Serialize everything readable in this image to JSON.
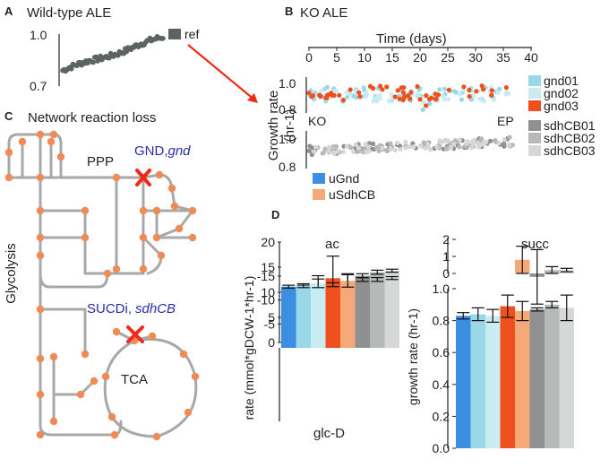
{
  "colors": {
    "gnd01": "#9ad8e8",
    "gnd02": "#c9ecf2",
    "gnd03": "#f0501e",
    "sdhCB01": "#8f9190",
    "sdhCB02": "#b7b9b8",
    "sdhCB03": "#d6d8d7",
    "uGnd": "#3b8ee0",
    "uSdhCB": "#f5a878",
    "ref": "#5d6361",
    "network": "#a8a8a8",
    "node": "#f08a56",
    "cross": "#ee2a1a"
  },
  "panel_a": {
    "letter": "A",
    "title": "Wild-type ALE",
    "legend_label": "ref",
    "chart_data": {
      "type": "scatter",
      "title": "Wild-type ALE",
      "ylim": [
        0.7,
        1.0
      ],
      "yticks": [
        "1.0",
        "0.7"
      ],
      "series": [
        {
          "name": "ref",
          "trend": [
            0.79,
            0.98
          ],
          "n_points": 70
        }
      ]
    }
  },
  "panel_b": {
    "letter": "B",
    "title": "KO ALE",
    "xlabel": "Time (days)",
    "xticks": [
      "0",
      "5",
      "10",
      "15",
      "20",
      "25",
      "30",
      "35",
      "40"
    ],
    "ylabel_line1": "Growth rate",
    "ylabel_line2": "(hr-1)",
    "upper_yticks": [
      "1.0",
      "0.8"
    ],
    "lower_yticks": [
      "1.0",
      "0.8"
    ],
    "label_ko": "KO",
    "label_ep": "EP",
    "legend_gnd": [
      "gnd01",
      "gnd02",
      "gnd03"
    ],
    "legend_sdh": [
      "sdhCB01",
      "sdhCB02",
      "sdhCB03"
    ],
    "legend_u": [
      "uGnd",
      "uSdhCB"
    ],
    "chart_data": [
      {
        "type": "scatter",
        "name": "gnd lineages",
        "xlim": [
          0,
          40
        ],
        "ylim": [
          0.8,
          1.05
        ],
        "series": [
          {
            "name": "gnd01",
            "x_range": [
              0,
              37
            ],
            "y_mean": 0.93
          },
          {
            "name": "gnd02",
            "x_range": [
              0,
              37
            ],
            "y_mean": 0.93
          },
          {
            "name": "gnd03",
            "x_range": [
              0,
              37
            ],
            "y_mean": 0.94
          }
        ]
      },
      {
        "type": "scatter",
        "name": "sdhCB lineages",
        "xlim": [
          0,
          40
        ],
        "ylim": [
          0.8,
          1.05
        ],
        "series": [
          {
            "name": "sdhCB01",
            "x_range": [
              0,
              37
            ],
            "y_mean": 0.95
          },
          {
            "name": "sdhCB02",
            "x_range": [
              0,
              37
            ],
            "y_mean": 0.95
          },
          {
            "name": "sdhCB03",
            "x_range": [
              0,
              37
            ],
            "y_mean": 0.95
          }
        ]
      }
    ]
  },
  "panel_c": {
    "letter": "C",
    "title": "Network reaction loss",
    "ppp": "PPP",
    "gnd_label_a": "GND,",
    "gnd_label_b": "gnd",
    "sucdi_label_a": "SUCDi,",
    "sucdi_label_b": "sdhCB",
    "glycolysis": "Glycolysis",
    "tca": "TCA"
  },
  "panel_d": {
    "letter": "D",
    "left_ylabel": "rate (mmol*gDCW-1*hr-1)",
    "right_ylabel": "growth rate (hr-1)",
    "chart_data": [
      {
        "type": "bar",
        "title": "ac",
        "categories": [
          "uGnd",
          "gnd01",
          "gnd02",
          "gnd03",
          "uSdhCB",
          "sdhCB01",
          "sdhCB02",
          "sdhCB03"
        ],
        "values": [
          10.6,
          10.8,
          11.6,
          12.8,
          11.9,
          13.3,
          14.0,
          14.3
        ],
        "errors": [
          0.3,
          0.6,
          1.7,
          4.4,
          1.8,
          0.4,
          0.4,
          0.3
        ],
        "ylim": [
          0,
          20
        ],
        "yticks": [
          "20",
          "15",
          "10",
          "5",
          "0"
        ]
      },
      {
        "type": "bar",
        "title": "glc-D",
        "categories": [
          "uGnd",
          "gnd01",
          "gnd02",
          "gnd03",
          "uSdhCB",
          "sdhCB01",
          "sdhCB02",
          "sdhCB03"
        ],
        "values": [
          -12.8,
          -13.0,
          -13.5,
          -13.2,
          -14.0,
          -14.3,
          -14.3,
          -14.6
        ],
        "errors": [
          0.3,
          0.4,
          0.9,
          0.4,
          1.3,
          0.4,
          0.4,
          0.3
        ],
        "ylim": [
          -15,
          0
        ],
        "yticks": [
          "-5",
          "-10",
          "-15"
        ]
      },
      {
        "type": "bar",
        "title": "succ",
        "categories": [
          "uGnd",
          "gnd01",
          "gnd02",
          "gnd03",
          "uSdhCB",
          "sdhCB01",
          "sdhCB02",
          "sdhCB03"
        ],
        "values": [
          0,
          0,
          0,
          0,
          0.8,
          -0.2,
          0.2,
          0.2
        ],
        "errors": [
          0,
          0,
          0,
          0,
          0.8,
          1.6,
          0.2,
          0.1
        ],
        "ylim": [
          0,
          2
        ],
        "yticks": [
          "2",
          "1",
          "0"
        ]
      },
      {
        "type": "bar",
        "title": "growth rate",
        "categories": [
          "uGnd",
          "gnd01",
          "gnd02",
          "gnd03",
          "uSdhCB",
          "sdhCB01",
          "sdhCB02",
          "sdhCB03"
        ],
        "values": [
          0.83,
          0.84,
          0.83,
          0.89,
          0.86,
          0.87,
          0.9,
          0.88
        ],
        "errors": [
          0.02,
          0.04,
          0.04,
          0.07,
          0.06,
          0.01,
          0.02,
          0.08
        ],
        "ylim": [
          0,
          1.0
        ],
        "yticks": [
          "1.0",
          "0.8",
          "0.6",
          "0.4",
          "0.2",
          "0.0"
        ]
      }
    ]
  }
}
